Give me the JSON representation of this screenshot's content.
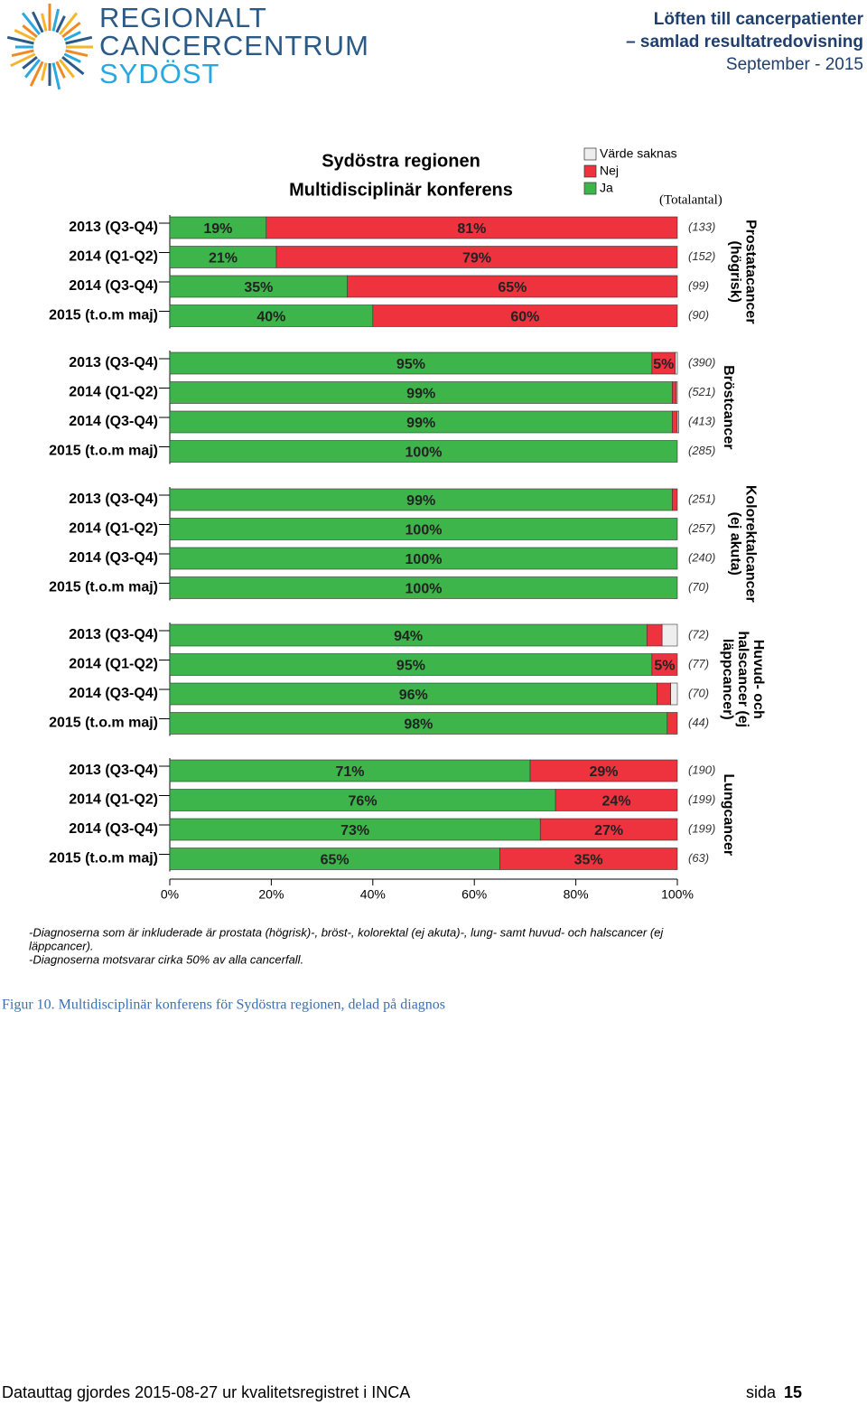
{
  "header": {
    "logo_lines": [
      "REGIONALT",
      "CANCERCENTRUM",
      "SYDÖST"
    ],
    "title_lines": [
      "Löften till cancerpatienter",
      "– samlad resultatredovisning",
      "September - 2015"
    ]
  },
  "chart_data": {
    "type": "bar",
    "orientation": "horizontal",
    "stacked": true,
    "title": [
      "Sydöstra regionen",
      "Multidisciplinär konferens"
    ],
    "totals_heading": "(Totalantal)",
    "categories": [
      "2013 (Q3-Q4)",
      "2014 (Q1-Q2)",
      "2014 (Q3-Q4)",
      "2015 (t.o.m maj)"
    ],
    "series": [
      {
        "name": "Ja",
        "color": "#3db54b"
      },
      {
        "name": "Nej",
        "color": "#ee333f"
      },
      {
        "name": "Värde saknas",
        "color": "#eeeeee"
      }
    ],
    "xlim": [
      0,
      100
    ],
    "xticks": [
      {
        "value": 0,
        "label": "0%"
      },
      {
        "value": 20,
        "label": "20%"
      },
      {
        "value": 40,
        "label": "40%"
      },
      {
        "value": 60,
        "label": "60%"
      },
      {
        "value": 80,
        "label": "80%"
      },
      {
        "value": 100,
        "label": "100%"
      }
    ],
    "groups": [
      {
        "name": [
          "Prostatacancer",
          "(högrisk)"
        ],
        "totals": [
          "(133)",
          "(152)",
          "(99)",
          "(90)"
        ],
        "values": [
          [
            19,
            21,
            35,
            40
          ],
          [
            81,
            79,
            65,
            60
          ],
          [
            0,
            0,
            0,
            0
          ]
        ],
        "value_labels": [
          [
            "19%",
            "21%",
            "35%",
            "40%"
          ],
          [
            "81%",
            "79%",
            "65%",
            "60%"
          ],
          [
            null,
            null,
            null,
            null
          ]
        ]
      },
      {
        "name": [
          "Bröstcancer"
        ],
        "totals": [
          "(390)",
          "(521)",
          "(413)",
          "(285)"
        ],
        "values": [
          [
            95,
            99,
            99,
            100
          ],
          [
            4.6,
            0.8,
            1,
            0
          ],
          [
            0.4,
            0.2,
            0.3,
            0
          ]
        ],
        "value_labels": [
          [
            "95%",
            "99%",
            "99%",
            "100%"
          ],
          [
            "5%",
            null,
            null,
            null
          ],
          [
            null,
            null,
            null,
            null
          ]
        ]
      },
      {
        "name": [
          "Kolorektalcancer",
          "(ej akuta)"
        ],
        "totals": [
          "(251)",
          "(257)",
          "(240)",
          "(70)"
        ],
        "values": [
          [
            99,
            100,
            100,
            100
          ],
          [
            1,
            0,
            0,
            0
          ],
          [
            0,
            0,
            0,
            0
          ]
        ],
        "value_labels": [
          [
            "99%",
            "100%",
            "100%",
            "100%"
          ],
          [
            null,
            null,
            null,
            null
          ],
          [
            null,
            null,
            null,
            null
          ]
        ]
      },
      {
        "name": [
          "Huvud- och",
          "halscancer (ej",
          "läppcancer)"
        ],
        "totals": [
          "(72)",
          "(77)",
          "(70)",
          "(44)"
        ],
        "values": [
          [
            94,
            95,
            96,
            98
          ],
          [
            3,
            5,
            2.7,
            2
          ],
          [
            3,
            0,
            1.3,
            0
          ]
        ],
        "value_labels": [
          [
            "94%",
            "95%",
            "96%",
            "98%"
          ],
          [
            null,
            "5%",
            null,
            null
          ],
          [
            null,
            null,
            null,
            null
          ]
        ]
      },
      {
        "name": [
          "Lungcancer"
        ],
        "totals": [
          "(190)",
          "(199)",
          "(199)",
          "(63)"
        ],
        "values": [
          [
            71,
            76,
            73,
            65
          ],
          [
            29,
            24,
            27,
            35
          ],
          [
            0,
            0,
            0,
            0
          ]
        ],
        "value_labels": [
          [
            "71%",
            "76%",
            "73%",
            "65%"
          ],
          [
            "29%",
            "24%",
            "27%",
            "35%"
          ],
          [
            null,
            null,
            null,
            null
          ]
        ]
      }
    ]
  },
  "notes": [
    "-Diagnoserna som är inkluderade är prostata (högrisk)-, bröst-, kolorektal (ej akuta)-, lung- samt huvud- och halscancer  (ej",
    "läppcancer).",
    "-Diagnoserna motsvarar cirka 50% av alla cancerfall."
  ],
  "caption": "Figur 10. Multidisciplinär konferens för Sydöstra regionen, delad på diagnos",
  "footer": {
    "text": "Datauttag gjordes 2015-08-27 ur kvalitetsregistret i INCA",
    "page_word": "sida",
    "page_number": "15"
  }
}
